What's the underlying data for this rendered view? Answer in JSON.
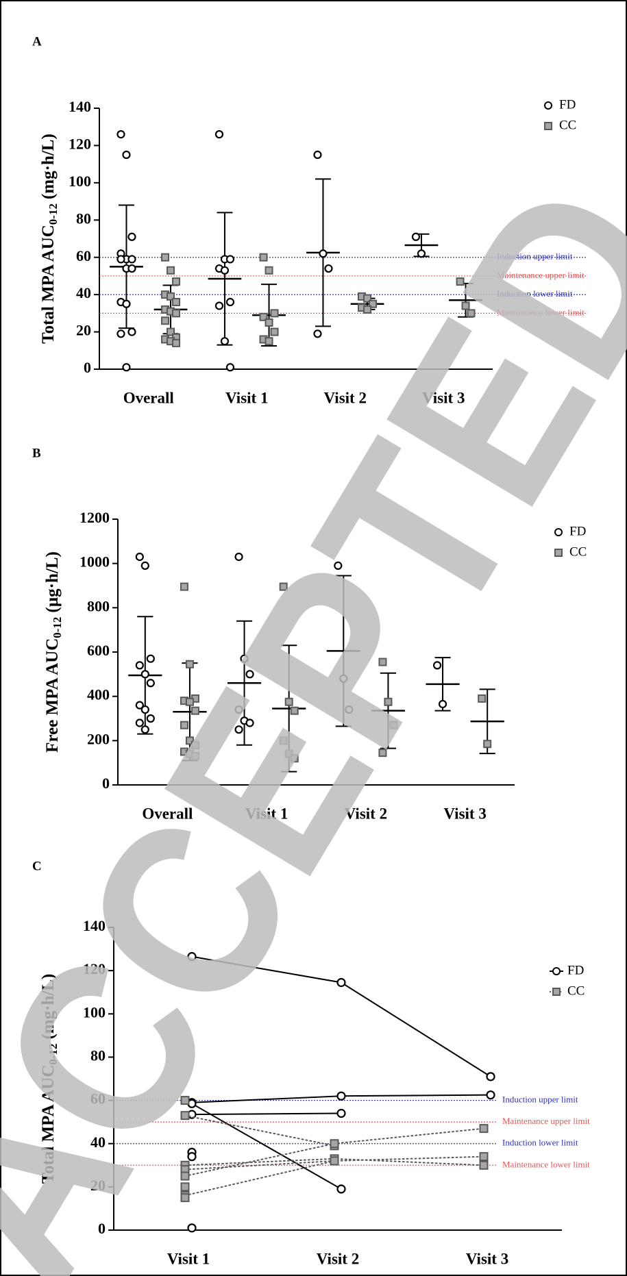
{
  "watermark": "ACCEPTED",
  "chart_data": [
    {
      "type": "dot",
      "panel": "A",
      "ylabel": "Total MPA AUC",
      "ylabel_sub": "0-12",
      "ylabel_unit": "(mg·h/L)",
      "categories": [
        "Overall",
        "Visit 1",
        "Visit 2",
        "Visit 3"
      ],
      "ylim": [
        0,
        140
      ],
      "yticks": [
        0,
        20,
        40,
        60,
        80,
        100,
        120,
        140
      ],
      "legend": "top-right",
      "series": [
        {
          "name": "FD",
          "marker": "circle",
          "color": "#000000",
          "fill": "#ffffff",
          "points": [
            [
              126,
              115,
              71,
              62,
              59,
              59,
              59,
              54,
              54,
              36,
              35,
              20,
              19,
              1
            ],
            [
              126,
              59,
              59,
              54,
              53,
              36,
              34,
              15,
              1
            ],
            [
              115,
              62,
              54,
              19
            ],
            [
              71,
              62
            ]
          ],
          "mean": [
            55,
            48.5,
            62.5,
            66.5
          ],
          "sd": [
            33,
            35.5,
            39.5,
            6
          ]
        },
        {
          "name": "CC",
          "marker": "square",
          "color": "#595959",
          "fill": "#a6a6a6",
          "points": [
            [
              60,
              53,
              47,
              40,
              39,
              36,
              32,
              31,
              30,
              26,
              20,
              17,
              16,
              15,
              14
            ],
            [
              60,
              53,
              30,
              28,
              25,
              20,
              16,
              15
            ],
            [
              39,
              38,
              35,
              33,
              32
            ],
            [
              47,
              34,
              30
            ]
          ],
          "mean": [
            32,
            29,
            35,
            37
          ],
          "sd": [
            13,
            16.5,
            3,
            9
          ]
        }
      ],
      "reference_lines": [
        {
          "label": "Induction upper limit",
          "value": 60,
          "color": "#3030b0"
        },
        {
          "label": "Maintenance upper limit",
          "value": 50,
          "color": "#e05a5a"
        },
        {
          "label": "Induction lower limit",
          "value": 40,
          "color": "#3030b0"
        },
        {
          "label": "Maintenance lower limit",
          "value": 30,
          "color": "#e05a5a"
        }
      ]
    },
    {
      "type": "dot",
      "panel": "B",
      "ylabel": "Free MPA AUC",
      "ylabel_sub": "0-12",
      "ylabel_unit": "(µg·h/L)",
      "categories": [
        "Overall",
        "Visit 1",
        "Visit 2",
        "Visit 3"
      ],
      "ylim": [
        0,
        1200
      ],
      "yticks": [
        0,
        200,
        400,
        600,
        800,
        1000,
        1200
      ],
      "legend": "top-right",
      "series": [
        {
          "name": "FD",
          "marker": "circle",
          "color": "#000000",
          "fill": "#ffffff",
          "points": [
            [
              1030,
              990,
              570,
              540,
              500,
              460,
              360,
              340,
              300,
              280,
              250
            ],
            [
              1030,
              570,
              500,
              340,
              290,
              280,
              250
            ],
            [
              990,
              480,
              340
            ],
            [
              540,
              365
            ]
          ],
          "mean": [
            495,
            460,
            605,
            455
          ],
          "sd": [
            265,
            280,
            340,
            120
          ]
        },
        {
          "name": "CC",
          "marker": "square",
          "color": "#595959",
          "fill": "#a6a6a6",
          "points": [
            [
              895,
              545,
              390,
              380,
              375,
              335,
              270,
              200,
              180,
              150,
              140,
              130
            ],
            [
              895,
              375,
              335,
              200,
              140,
              120
            ],
            [
              555,
              375,
              270,
              145
            ],
            [
              390,
              185
            ]
          ],
          "mean": [
            330,
            345,
            335,
            287
          ],
          "sd": [
            220,
            285,
            170,
            145
          ]
        }
      ]
    },
    {
      "type": "line",
      "panel": "C",
      "ylabel": "Total MPA AUC",
      "ylabel_sub": "0-12",
      "ylabel_unit": "(mg·h/L)",
      "categories": [
        "Visit 1",
        "Visit 2",
        "Visit 3"
      ],
      "ylim": [
        0,
        140
      ],
      "yticks": [
        0,
        20,
        40,
        60,
        80,
        100,
        120,
        140
      ],
      "legend": "top-right",
      "series": [
        {
          "name": "FD",
          "marker": "circle",
          "color": "#000000",
          "fill": "#ffffff",
          "dash": "solid",
          "patients": [
            [
              126.5,
              114.5,
              71
            ],
            [
              59,
              62,
              62.5
            ],
            [
              53.5,
              54,
              null
            ],
            [
              58.5,
              19,
              null
            ],
            [
              36,
              null,
              null
            ],
            [
              34,
              null,
              null
            ],
            [
              1,
              null,
              null
            ]
          ]
        },
        {
          "name": "CC",
          "marker": "square",
          "color": "#595959",
          "fill": "#a6a6a6",
          "dash": "dotted",
          "patients": [
            [
              53,
              39,
              null
            ],
            [
              30,
              33,
              30
            ],
            [
              28,
              32,
              34
            ],
            [
              25,
              40,
              47
            ],
            [
              16,
              32,
              null
            ],
            [
              60,
              null,
              null
            ],
            [
              20,
              null,
              null
            ],
            [
              15,
              null,
              null
            ]
          ]
        }
      ],
      "reference_lines": [
        {
          "label": "Induction upper limit",
          "value": 60,
          "color": "#3030b0"
        },
        {
          "label": "Maintenance upper limit",
          "value": 50,
          "color": "#e05a5a"
        },
        {
          "label": "Induction lower limit",
          "value": 40,
          "color": "#3030b0"
        },
        {
          "label": "Maintenance lower limit",
          "value": 30,
          "color": "#e05a5a"
        }
      ]
    }
  ]
}
